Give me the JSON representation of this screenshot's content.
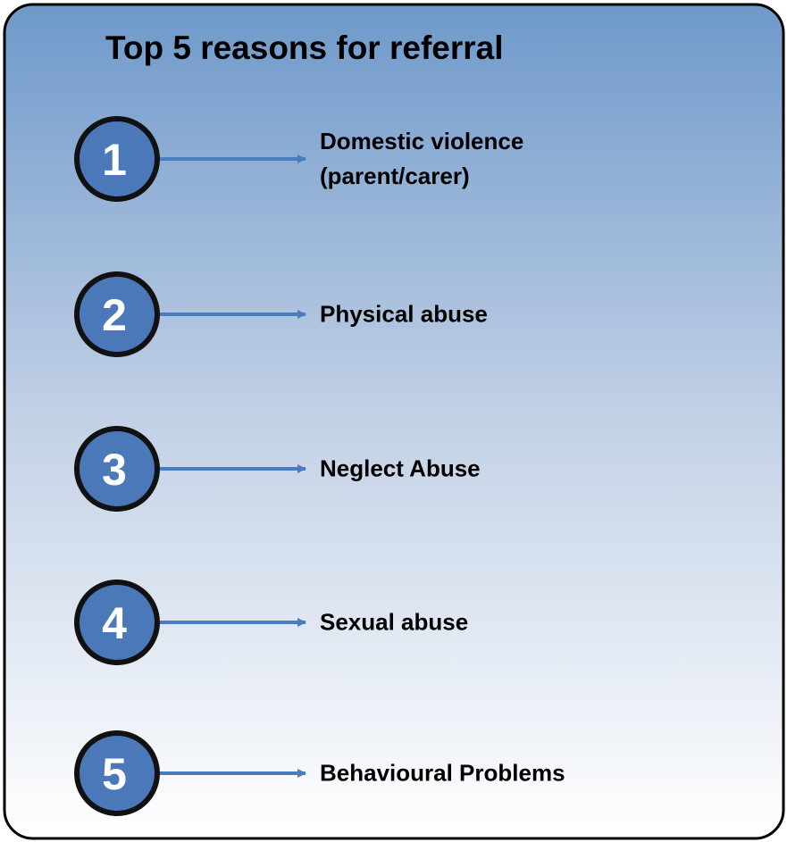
{
  "title": "Top 5 reasons for referral",
  "items": [
    {
      "number": "1",
      "label": "Domestic violence\n(parent/carer)"
    },
    {
      "number": "2",
      "label": "Physical abuse"
    },
    {
      "number": "3",
      "label": "Neglect Abuse"
    },
    {
      "number": "4",
      "label": "Sexual abuse"
    },
    {
      "number": "5",
      "label": "Behavioural Problems"
    }
  ]
}
